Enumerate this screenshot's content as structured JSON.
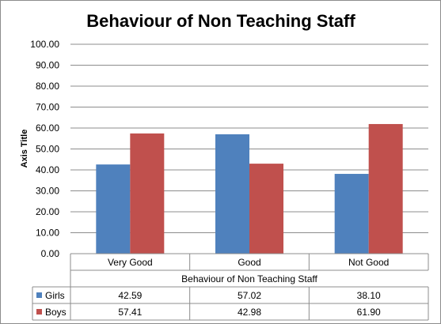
{
  "chart_data": {
    "type": "bar",
    "title": "Behaviour of Non Teaching Staff",
    "xlabel": "Behaviour of Non Teaching Staff",
    "ylabel": "Axis Title",
    "categories": [
      "Very Good",
      "Good",
      "Not Good"
    ],
    "series": [
      {
        "name": "Girls",
        "color": "#4f81bd",
        "values": [
          42.59,
          57.02,
          38.1
        ],
        "labels": [
          "42.59",
          "57.02",
          "38.10"
        ]
      },
      {
        "name": "Boys",
        "color": "#c0504d",
        "values": [
          57.41,
          42.98,
          61.9
        ],
        "labels": [
          "57.41",
          "42.98",
          "61.90"
        ]
      }
    ],
    "ylim": [
      0,
      100
    ],
    "yticks": [
      "0.00",
      "10.00",
      "20.00",
      "30.00",
      "40.00",
      "50.00",
      "60.00",
      "70.00",
      "80.00",
      "90.00",
      "100.00"
    ],
    "grid": true,
    "legend": "data-table",
    "data_table": true
  }
}
